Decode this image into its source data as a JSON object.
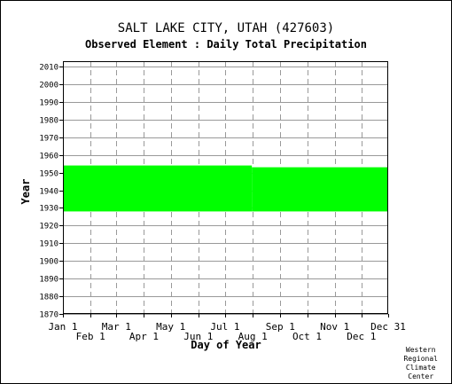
{
  "chart_data": {
    "type": "area",
    "title": "SALT LAKE CITY, UTAH   (427603)",
    "subtitle": "Observed Element : Daily Total Precipitation",
    "ylabel": "Year",
    "xlabel": "Day of Year",
    "ylim": [
      1870,
      2012
    ],
    "yticks": [
      1870,
      1880,
      1890,
      1900,
      1910,
      1920,
      1930,
      1940,
      1950,
      1960,
      1970,
      1980,
      1990,
      2000,
      2010
    ],
    "xlim": [
      1,
      366
    ],
    "xticks_top_row": [
      {
        "day": 1,
        "label": "Jan 1"
      },
      {
        "day": 61,
        "label": "Mar 1"
      },
      {
        "day": 122,
        "label": "May 1"
      },
      {
        "day": 183,
        "label": "Jul 1"
      },
      {
        "day": 245,
        "label": "Sep 1"
      },
      {
        "day": 306,
        "label": "Nov 1"
      },
      {
        "day": 366,
        "label": "Dec 31"
      }
    ],
    "xticks_bottom_row": [
      {
        "day": 32,
        "label": "Feb 1"
      },
      {
        "day": 92,
        "label": "Apr 1"
      },
      {
        "day": 153,
        "label": "Jun 1"
      },
      {
        "day": 214,
        "label": "Aug 1"
      },
      {
        "day": 275,
        "label": "Oct 1"
      },
      {
        "day": 336,
        "label": "Dec 1"
      }
    ],
    "grid": true,
    "series": [
      {
        "color": "#00ff00",
        "segments": [
          {
            "day_start": 1,
            "day_end": 213,
            "year_start": 1928,
            "year_end": 1954
          },
          {
            "day_start": 213,
            "day_end": 366,
            "year_start": 1928,
            "year_end": 1953
          }
        ]
      }
    ]
  },
  "credit": "Western\nRegional\nClimate\nCenter"
}
